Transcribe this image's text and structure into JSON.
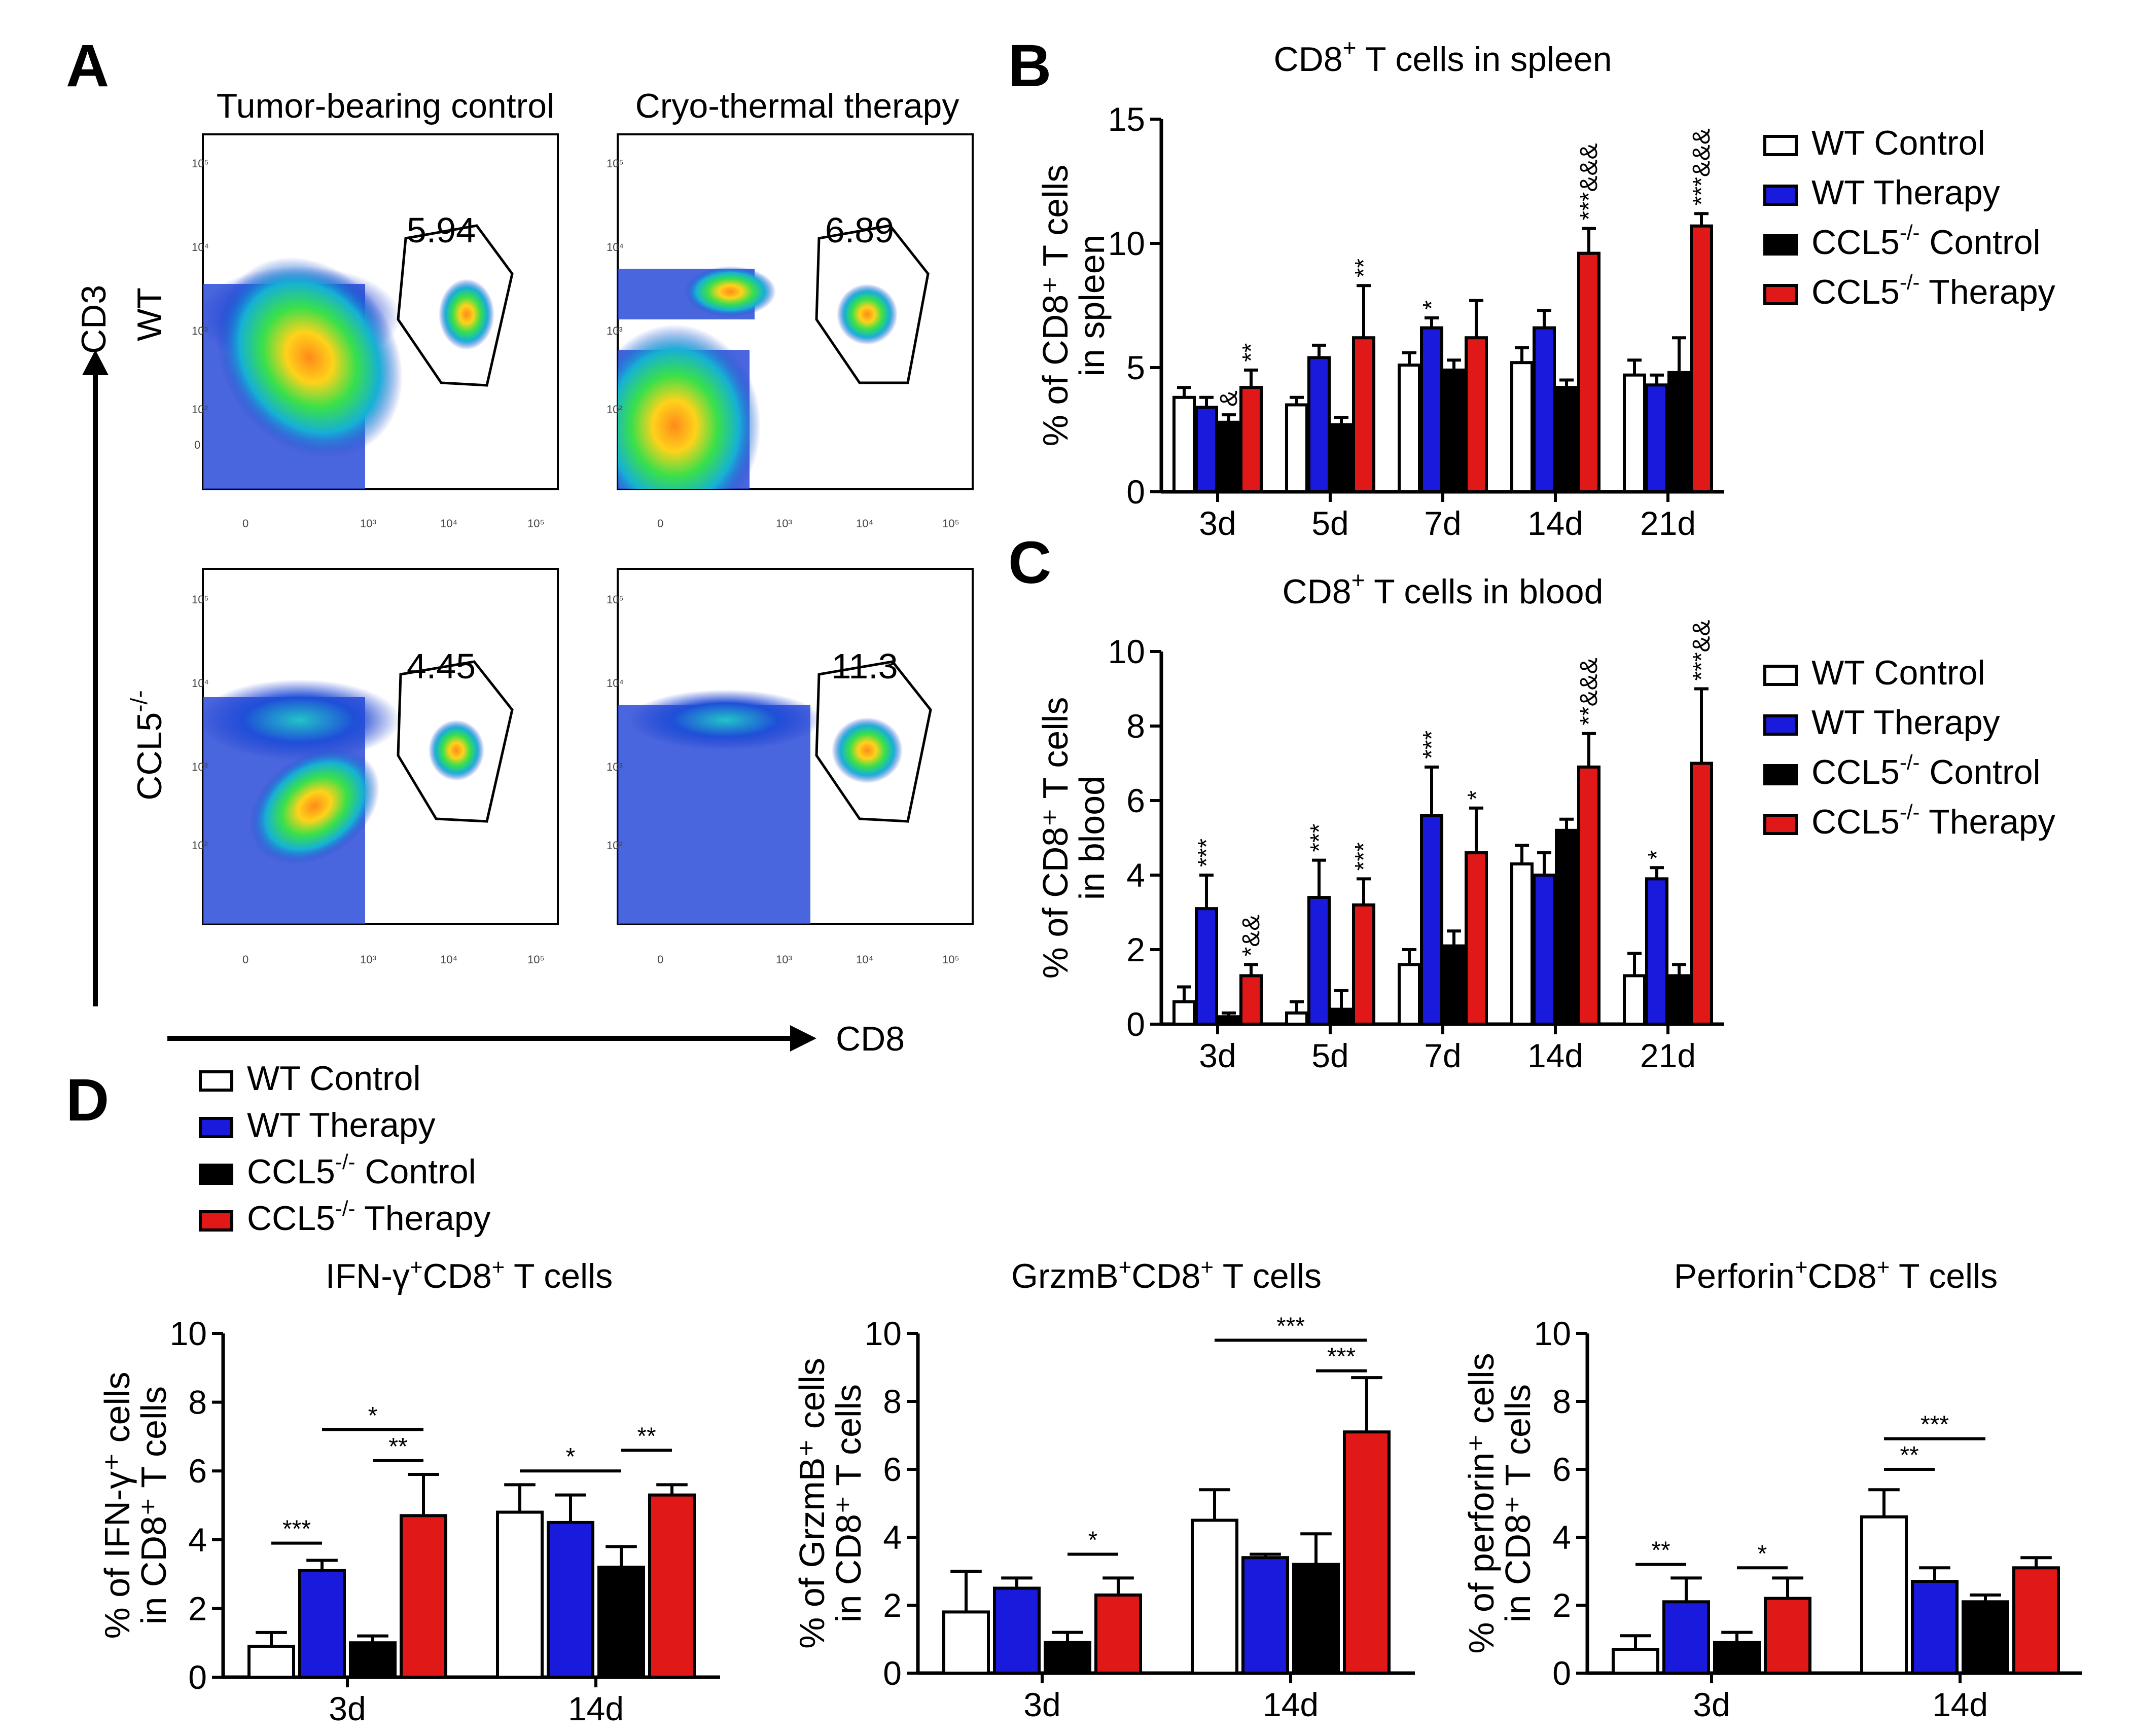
{
  "panel_labels": {
    "A": "A",
    "B": "B",
    "C": "C",
    "D": "D"
  },
  "legend": {
    "items": [
      {
        "name": "WT Control",
        "base": "WT Control",
        "sup": "",
        "rest": "",
        "color": "#ffffff"
      },
      {
        "name": "WT Therapy",
        "base": "WT Therapy",
        "sup": "",
        "rest": "",
        "color": "#1a1adc"
      },
      {
        "name": "CCL5-/- Control",
        "base": "CCL5",
        "sup": "-/-",
        "rest": " Control",
        "color": "#000000"
      },
      {
        "name": "CCL5-/- Therapy",
        "base": "CCL5",
        "sup": "-/-",
        "rest": " Therapy",
        "color": "#e01818"
      }
    ]
  },
  "flow": {
    "col_titles": [
      "Tumor-bearing control",
      "Cryo-thermal therapy"
    ],
    "row_labels": [
      "WT",
      "CCL5-/-"
    ],
    "x_axis_label": "CD8",
    "y_axis_label": "CD3",
    "tick_labels": {
      "zero": "0",
      "e2": "10²",
      "e3": "10³",
      "e4": "10⁴",
      "e5": "10⁵"
    },
    "gate_values": [
      "5.94",
      "6.89",
      "4.45",
      "11.3"
    ]
  },
  "chart_data": [
    {
      "id": "B",
      "type": "bar",
      "title": "CD8+ T cells in spleen",
      "title_main": "CD8",
      "title_sup": "+",
      "title_rest": " T cells in spleen",
      "ylabel_lines": [
        "% of CD8⁺ T cells",
        "in spleen"
      ],
      "xlabel": "",
      "categories": [
        "3d",
        "5d",
        "7d",
        "14d",
        "21d"
      ],
      "ylim": [
        0,
        15
      ],
      "yticks": [
        0,
        5,
        10,
        15
      ],
      "series": [
        {
          "name": "WT Control",
          "values": [
            3.8,
            3.5,
            5.1,
            5.2,
            4.7
          ],
          "errors": [
            0.4,
            0.3,
            0.5,
            0.6,
            0.6
          ]
        },
        {
          "name": "WT Therapy",
          "values": [
            3.4,
            5.4,
            6.6,
            6.6,
            4.3
          ],
          "errors": [
            0.4,
            0.5,
            0.4,
            0.7,
            0.4
          ]
        },
        {
          "name": "CCL5-/- Control",
          "values": [
            2.8,
            2.7,
            4.9,
            4.2,
            4.8
          ],
          "errors": [
            0.3,
            0.3,
            0.4,
            0.3,
            1.4
          ]
        },
        {
          "name": "CCL5-/- Therapy",
          "values": [
            4.2,
            6.2,
            6.2,
            9.6,
            10.7
          ],
          "errors": [
            0.7,
            2.1,
            1.5,
            1.0,
            0.5
          ]
        }
      ],
      "annotations": [
        {
          "category": "3d",
          "series": 2,
          "text": "&"
        },
        {
          "category": "3d",
          "series": 3,
          "text": "**"
        },
        {
          "category": "5d",
          "series": 3,
          "text": "**"
        },
        {
          "category": "7d",
          "series": 1,
          "text": "*"
        },
        {
          "category": "14d",
          "series": 3,
          "text": "***&&&"
        },
        {
          "category": "21d",
          "series": 3,
          "text": "***&&&"
        }
      ]
    },
    {
      "id": "C",
      "type": "bar",
      "title": "CD8+ T cells in blood",
      "title_main": "CD8",
      "title_sup": "+",
      "title_rest": " T cells in blood",
      "ylabel_lines": [
        "% of CD8⁺ T cells",
        "in blood"
      ],
      "xlabel": "",
      "categories": [
        "3d",
        "5d",
        "7d",
        "14d",
        "21d"
      ],
      "ylim": [
        0,
        10
      ],
      "yticks": [
        0,
        2,
        4,
        6,
        8,
        10
      ],
      "series": [
        {
          "name": "WT Control",
          "values": [
            0.6,
            0.3,
            1.6,
            4.3,
            1.3
          ],
          "errors": [
            0.4,
            0.3,
            0.4,
            0.5,
            0.6
          ]
        },
        {
          "name": "WT Therapy",
          "values": [
            3.1,
            3.4,
            5.6,
            4.0,
            3.9
          ],
          "errors": [
            0.9,
            1.0,
            1.3,
            0.6,
            0.3
          ]
        },
        {
          "name": "CCL5-/- Control",
          "values": [
            0.2,
            0.4,
            2.1,
            5.2,
            1.3
          ],
          "errors": [
            0.1,
            0.5,
            0.4,
            0.3,
            0.3
          ]
        },
        {
          "name": "CCL5-/- Therapy",
          "values": [
            1.3,
            3.2,
            4.6,
            6.9,
            7.0
          ],
          "errors": [
            0.3,
            0.7,
            1.2,
            0.9,
            2.0
          ]
        }
      ],
      "annotations": [
        {
          "category": "3d",
          "series": 1,
          "text": "***"
        },
        {
          "category": "3d",
          "series": 3,
          "text": "*&&"
        },
        {
          "category": "5d",
          "series": 1,
          "text": "***"
        },
        {
          "category": "5d",
          "series": 3,
          "text": "***"
        },
        {
          "category": "7d",
          "series": 1,
          "text": "***"
        },
        {
          "category": "7d",
          "series": 3,
          "text": "*"
        },
        {
          "category": "14d",
          "series": 3,
          "text": "**&&&"
        },
        {
          "category": "21d",
          "series": 1,
          "text": "*"
        },
        {
          "category": "21d",
          "series": 3,
          "text": "***&&"
        }
      ]
    },
    {
      "id": "D1",
      "type": "bar",
      "title": "IFN-γ+CD8+ T cells",
      "title_parts": [
        "IFN-γ",
        "+",
        "CD8",
        "+",
        " T cells"
      ],
      "ylabel_lines": [
        "% of IFN-γ⁺ cells",
        "in CD8⁺ T cells"
      ],
      "xlabel": "",
      "categories": [
        "3d",
        "14d"
      ],
      "ylim": [
        0,
        10
      ],
      "yticks": [
        0,
        2,
        4,
        6,
        8,
        10
      ],
      "series": [
        {
          "name": "WT Control",
          "values": [
            0.9,
            4.8
          ],
          "errors": [
            0.4,
            0.8
          ]
        },
        {
          "name": "WT Therapy",
          "values": [
            3.1,
            4.5
          ],
          "errors": [
            0.3,
            0.8
          ]
        },
        {
          "name": "CCL5-/- Control",
          "values": [
            1.0,
            3.2
          ],
          "errors": [
            0.2,
            0.6
          ]
        },
        {
          "name": "CCL5-/- Therapy",
          "values": [
            4.7,
            5.3
          ],
          "errors": [
            1.2,
            0.3
          ]
        }
      ],
      "comparisons": [
        {
          "text": "***",
          "from": [
            0,
            0
          ],
          "to": [
            0,
            1
          ],
          "y": 3.9
        },
        {
          "text": "*",
          "from": [
            0,
            1
          ],
          "to": [
            0,
            3
          ],
          "y": 7.2
        },
        {
          "text": "**",
          "from": [
            0,
            2
          ],
          "to": [
            0,
            3
          ],
          "y": 6.3
        },
        {
          "text": "*",
          "from": [
            1,
            0
          ],
          "to": [
            1,
            2
          ],
          "y": 6.0
        },
        {
          "text": "**",
          "from": [
            1,
            2
          ],
          "to": [
            1,
            3
          ],
          "y": 6.6
        }
      ]
    },
    {
      "id": "D2",
      "type": "bar",
      "title": "GrzmB+CD8+ T cells",
      "title_parts": [
        "GrzmB",
        "+",
        "CD8",
        "+",
        " T cells"
      ],
      "ylabel_lines": [
        "% of GrzmB⁺ cells",
        "in CD8⁺ T cells"
      ],
      "xlabel": "",
      "categories": [
        "3d",
        "14d"
      ],
      "ylim": [
        0,
        10
      ],
      "yticks": [
        0,
        2,
        4,
        6,
        8,
        10
      ],
      "series": [
        {
          "name": "WT Control",
          "values": [
            1.8,
            4.5
          ],
          "errors": [
            1.2,
            0.9
          ]
        },
        {
          "name": "WT Therapy",
          "values": [
            2.5,
            3.4
          ],
          "errors": [
            0.3,
            0.1
          ]
        },
        {
          "name": "CCL5-/- Control",
          "values": [
            0.9,
            3.2
          ],
          "errors": [
            0.3,
            0.9
          ]
        },
        {
          "name": "CCL5-/- Therapy",
          "values": [
            2.3,
            7.1
          ],
          "errors": [
            0.5,
            1.6
          ]
        }
      ],
      "comparisons": [
        {
          "text": "*",
          "from": [
            0,
            2
          ],
          "to": [
            0,
            3
          ],
          "y": 3.5
        },
        {
          "text": "***",
          "from": [
            1,
            0
          ],
          "to": [
            1,
            3
          ],
          "y": 9.8
        },
        {
          "text": "***",
          "from": [
            1,
            2
          ],
          "to": [
            1,
            3
          ],
          "y": 8.9
        }
      ]
    },
    {
      "id": "D3",
      "type": "bar",
      "title": "Perforin+CD8+ T cells",
      "title_parts": [
        "Perforin",
        "+",
        "CD8",
        "+",
        " T cells"
      ],
      "ylabel_lines": [
        "% of perforin⁺ cells",
        "in CD8⁺ T cells"
      ],
      "xlabel": "",
      "categories": [
        "3d",
        "14d"
      ],
      "ylim": [
        0,
        10
      ],
      "yticks": [
        0,
        2,
        4,
        6,
        8,
        10
      ],
      "series": [
        {
          "name": "WT Control",
          "values": [
            0.7,
            4.6
          ],
          "errors": [
            0.4,
            0.8
          ]
        },
        {
          "name": "WT Therapy",
          "values": [
            2.1,
            2.7
          ],
          "errors": [
            0.7,
            0.4
          ]
        },
        {
          "name": "CCL5-/- Control",
          "values": [
            0.9,
            2.1
          ],
          "errors": [
            0.3,
            0.2
          ]
        },
        {
          "name": "CCL5-/- Therapy",
          "values": [
            2.2,
            3.1
          ],
          "errors": [
            0.6,
            0.3
          ]
        }
      ],
      "comparisons": [
        {
          "text": "**",
          "from": [
            0,
            0
          ],
          "to": [
            0,
            1
          ],
          "y": 3.2
        },
        {
          "text": "*",
          "from": [
            0,
            2
          ],
          "to": [
            0,
            3
          ],
          "y": 3.1
        },
        {
          "text": "***",
          "from": [
            1,
            0
          ],
          "to": [
            1,
            2
          ],
          "y": 6.9
        },
        {
          "text": "**",
          "from": [
            1,
            0
          ],
          "to": [
            1,
            1
          ],
          "y": 6.0
        }
      ]
    }
  ]
}
